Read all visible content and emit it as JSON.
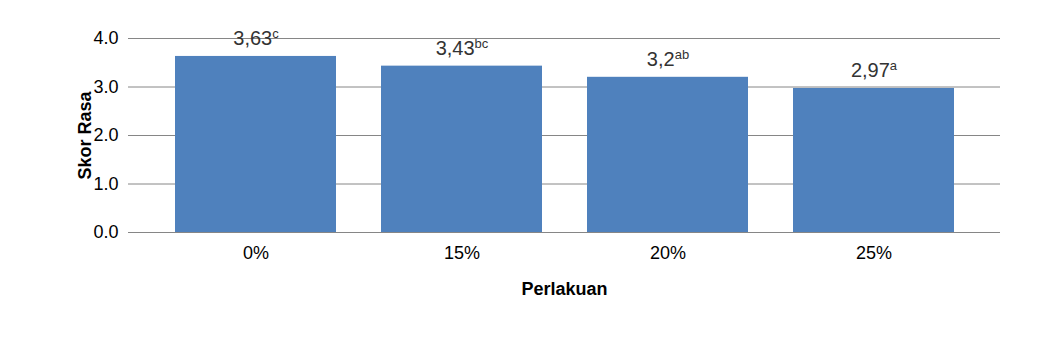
{
  "chart_data": {
    "type": "bar",
    "x_label": "Perlakuan",
    "y_label": "Skor Rasa",
    "categories": [
      "0%",
      "15%",
      "20%",
      "25%"
    ],
    "values": [
      3.63,
      3.43,
      3.2,
      2.97
    ],
    "value_labels": [
      "3,63",
      "3,43",
      "3,2",
      "2,97"
    ],
    "superscripts": [
      "c",
      "bc",
      "ab",
      "a"
    ],
    "color": "#4f81bd",
    "ylim": [
      0,
      4
    ],
    "yticks": [
      0,
      1,
      2,
      3,
      4
    ],
    "grid": true,
    "data_labels": true
  }
}
